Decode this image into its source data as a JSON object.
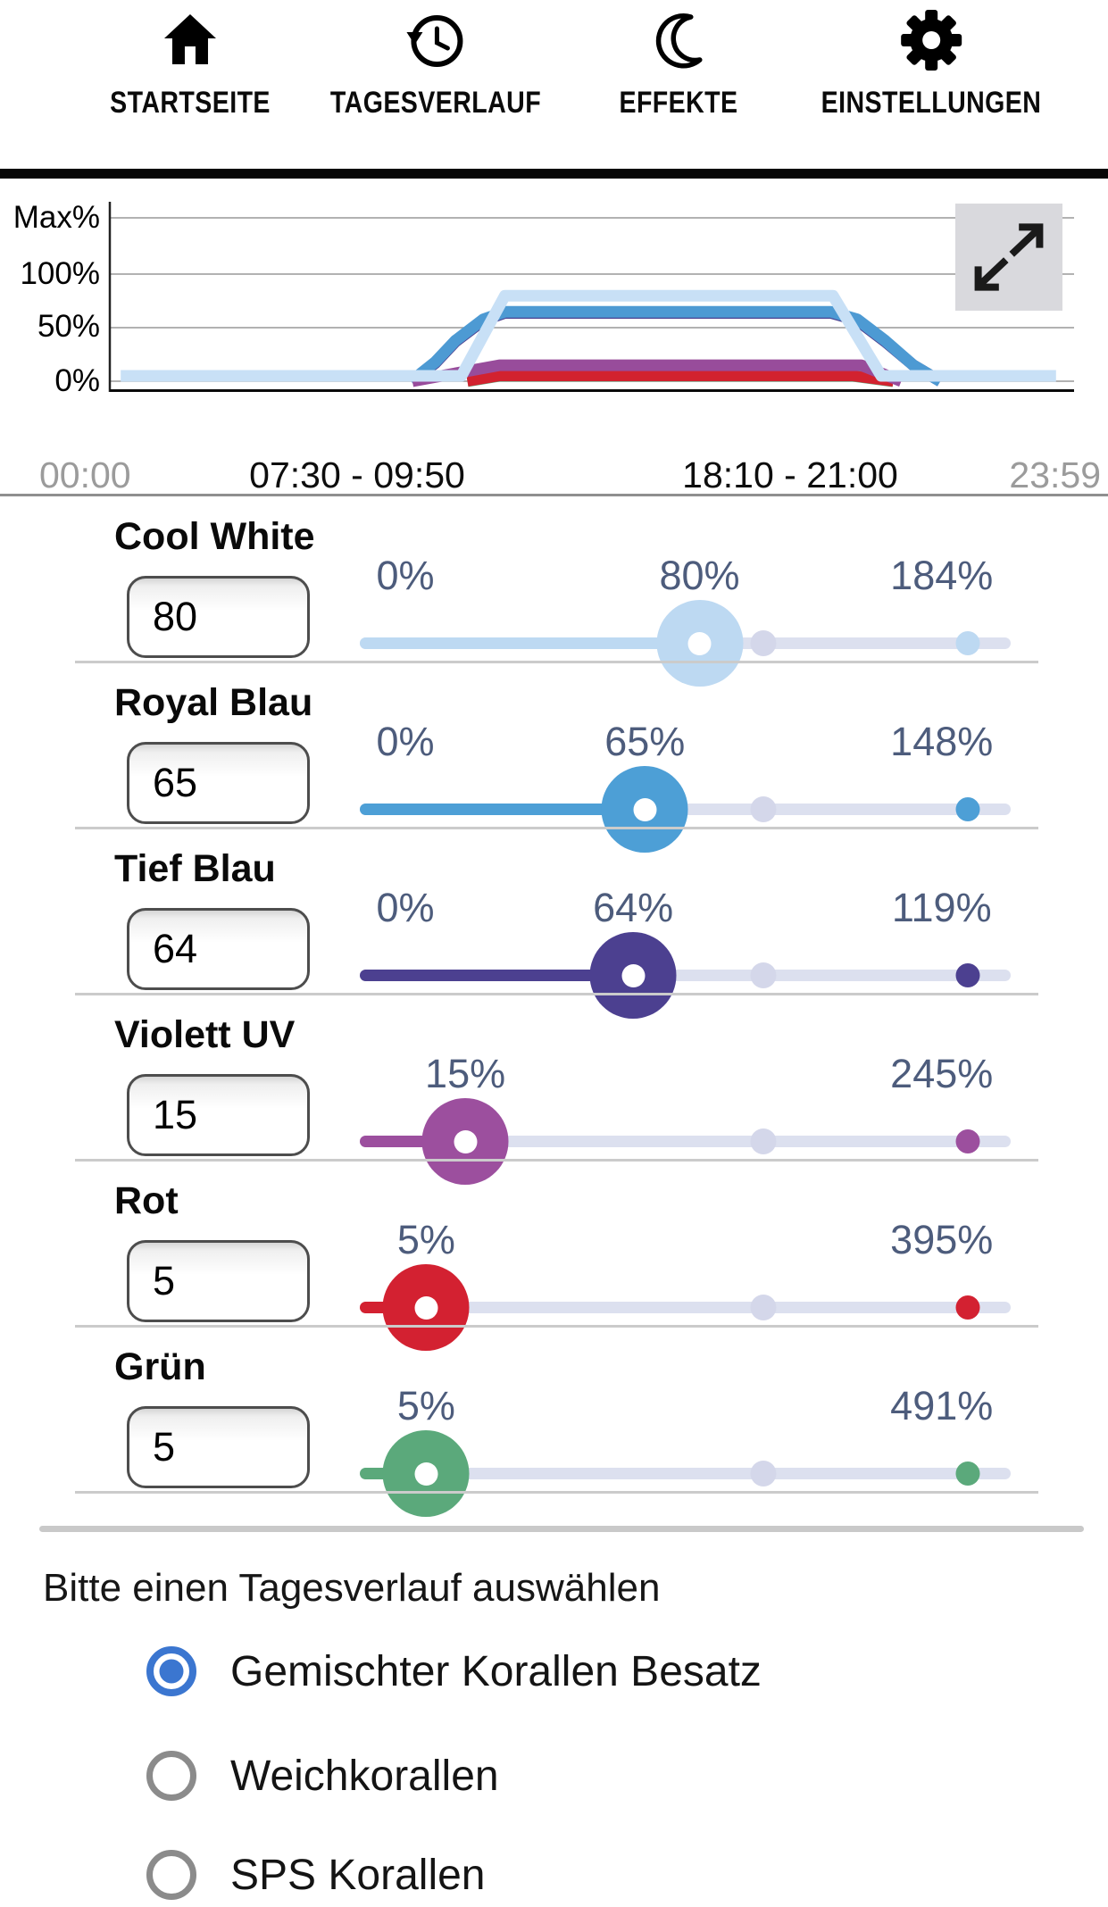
{
  "nav": {
    "items": [
      {
        "label": "STARTSEITE",
        "icon": "home-icon"
      },
      {
        "label": "TAGESVERLAUF",
        "icon": "history-clock-icon"
      },
      {
        "label": "EFFEKTE",
        "icon": "moon-icon"
      },
      {
        "label": "EINSTELLUNGEN",
        "icon": "gear-icon"
      }
    ]
  },
  "chart": {
    "y_axis_labels": [
      "Max%",
      "100%",
      "50%",
      "0%"
    ],
    "time_labels": {
      "start": "00:00",
      "morning_range": "07:30 - 09:50",
      "evening_range": "18:10 - 21:00",
      "end": "23:59"
    },
    "expand_icon": "expand-arrows-icon"
  },
  "chart_data": {
    "type": "line",
    "x_unit": "hours",
    "x_range": [
      0,
      24
    ],
    "y_tick_labels": [
      "0%",
      "50%",
      "100%",
      "Max%"
    ],
    "gridline_values": [
      0,
      50,
      100,
      153
    ],
    "grid": true,
    "x_annotations": [
      "00:00",
      "07:30 - 09:50",
      "18:10 - 21:00",
      "23:59"
    ],
    "ramp_up_window": "07:30 - 09:50",
    "ramp_down_window": "18:10 - 21:00",
    "series": [
      {
        "name": "Cool White",
        "color": "#c8e0f6",
        "points": [
          [
            0.27,
            5
          ],
          [
            8.75,
            5
          ],
          [
            9.83,
            80
          ],
          [
            18.0,
            80
          ],
          [
            19.2,
            5
          ],
          [
            23.55,
            5
          ]
        ]
      },
      {
        "name": "Royal Blau",
        "color": "#4d9ad3",
        "points": [
          [
            7.5,
            0
          ],
          [
            8.1,
            18
          ],
          [
            8.6,
            38
          ],
          [
            9.3,
            58
          ],
          [
            9.83,
            65
          ],
          [
            17.95,
            65
          ],
          [
            18.6,
            58
          ],
          [
            19.3,
            38
          ],
          [
            20.0,
            15
          ],
          [
            20.67,
            0
          ]
        ]
      },
      {
        "name": "Tief Blau",
        "color": "#4c4090",
        "points": [
          [
            7.5,
            0
          ],
          [
            8.1,
            17
          ],
          [
            8.6,
            37
          ],
          [
            9.3,
            57
          ],
          [
            9.83,
            64
          ],
          [
            17.95,
            64
          ],
          [
            18.6,
            57
          ],
          [
            19.3,
            37
          ],
          [
            20.0,
            15
          ],
          [
            20.67,
            0
          ]
        ]
      },
      {
        "name": "Violett UV",
        "color": "#984c9b",
        "points": [
          [
            7.53,
            0
          ],
          [
            9.7,
            15
          ],
          [
            18.7,
            15
          ],
          [
            19.7,
            0
          ]
        ]
      },
      {
        "name": "Rot",
        "color": "#d2222f",
        "points": [
          [
            8.9,
            0
          ],
          [
            9.7,
            5
          ],
          [
            18.5,
            5
          ],
          [
            19.5,
            0
          ]
        ]
      },
      {
        "name": "Grün",
        "color": "#5ba97b",
        "points": [
          [
            8.9,
            0
          ],
          [
            9.7,
            5
          ],
          [
            18.5,
            5
          ],
          [
            19.5,
            0
          ]
        ]
      }
    ],
    "draw_order": [
      "Tief Blau",
      "Royal Blau",
      "Grün",
      "Rot",
      "Violett UV",
      "Cool White"
    ]
  },
  "sliders": {
    "geometry": {
      "dot100_pct": 62,
      "maxdot_pct": 93.4,
      "min_label_pct": 7.0,
      "max_label_pct": 89.4
    },
    "rows": [
      {
        "label": "Cool White",
        "input_value": "80",
        "min_label": "0%",
        "value_label": "80%",
        "max_label": "184%",
        "color": "#bdd9f2",
        "thumb_pct": 52.2
      },
      {
        "label": "Royal Blau",
        "input_value": "65",
        "min_label": "0%",
        "value_label": "65%",
        "max_label": "148%",
        "color": "#4d9fd6",
        "thumb_pct": 43.8
      },
      {
        "label": "Tief Blau",
        "input_value": "64",
        "min_label": "0%",
        "value_label": "64%",
        "max_label": "119%",
        "color": "#4c4090",
        "thumb_pct": 42.0
      },
      {
        "label": "Violett UV",
        "input_value": "15",
        "min_label": null,
        "value_label": "15%",
        "max_label": "245%",
        "color": "#9c4f9e",
        "thumb_pct": 16.2
      },
      {
        "label": "Rot",
        "input_value": "5",
        "min_label": null,
        "value_label": "5%",
        "max_label": "395%",
        "color": "#d32131",
        "thumb_pct": 10.2
      },
      {
        "label": "Grün",
        "input_value": "5",
        "min_label": null,
        "value_label": "5%",
        "max_label": "491%",
        "color": "#5ba97b",
        "thumb_pct": 10.2
      }
    ]
  },
  "profile": {
    "heading": "Bitte einen Tagesverlauf auswählen",
    "options": [
      {
        "label": "Gemischter Korallen Besatz",
        "selected": true
      },
      {
        "label": "Weichkorallen",
        "selected": false
      },
      {
        "label": "SPS Korallen",
        "selected": false
      }
    ]
  },
  "colors": {
    "radio_selected": "#3b76d0",
    "percent_label": "#4d5c7c",
    "track_rest": "#dce0ef",
    "track_marker": "#d4d7ea",
    "nav_text": "#0b0b0b"
  }
}
